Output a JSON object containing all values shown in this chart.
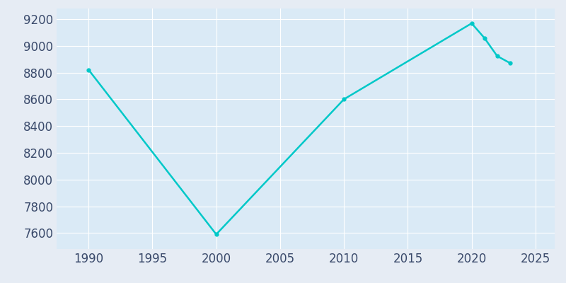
{
  "years": [
    1990,
    2000,
    2010,
    2020,
    2021,
    2022,
    2023
  ],
  "population": [
    8822,
    7590,
    8601,
    9169,
    9059,
    8924,
    8872
  ],
  "line_color": "#00C8C8",
  "marker_style": "o",
  "marker_size": 3.5,
  "bg_color": "#E6ECF4",
  "plot_bg_color": "#DAEAF6",
  "grid_color": "#FFFFFF",
  "tick_color": "#3A4A6B",
  "xlim": [
    1987.5,
    2026.5
  ],
  "ylim": [
    7480,
    9280
  ],
  "xticks": [
    1990,
    1995,
    2000,
    2005,
    2010,
    2015,
    2020,
    2025
  ],
  "yticks": [
    7600,
    7800,
    8000,
    8200,
    8400,
    8600,
    8800,
    9000,
    9200
  ],
  "tick_fontsize": 12,
  "linewidth": 1.8
}
